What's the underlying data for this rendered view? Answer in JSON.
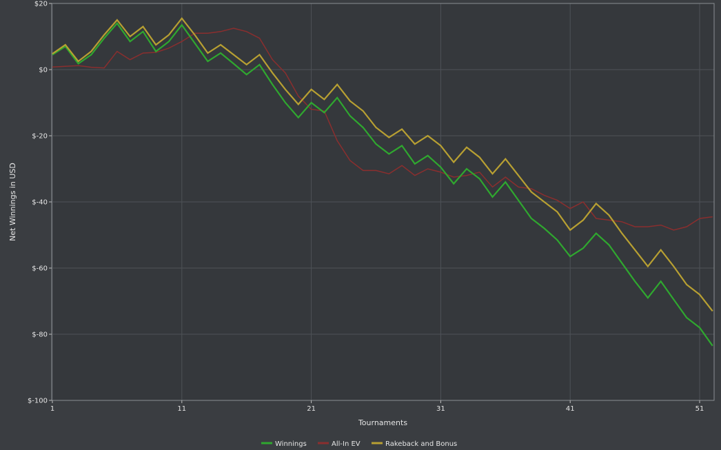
{
  "chart_data": {
    "type": "line",
    "xlabel": "Tournaments",
    "ylabel": "Net Winnings in USD",
    "xlim": [
      1,
      52
    ],
    "ylim": [
      -100,
      20
    ],
    "x_ticks": [
      1,
      11,
      21,
      31,
      41,
      51
    ],
    "y_ticks": [
      20,
      0,
      -20,
      -40,
      -60,
      -80,
      -100
    ],
    "y_tick_labels": [
      "$20",
      "$0",
      "$-20",
      "$-40",
      "$-60",
      "$-80",
      "$-100"
    ],
    "grid": true,
    "legend_position": "bottom",
    "colors": {
      "background": "#3a3d41",
      "plot_background": "#35383c",
      "grid": "#4e5257",
      "axis": "#bfbfbf"
    },
    "series": [
      {
        "name": "Winnings",
        "color": "#2fa82f",
        "values": [
          4.5,
          7,
          1.8,
          4.5,
          9.5,
          14,
          8.5,
          11.5,
          5.5,
          8.5,
          13.5,
          8,
          2.5,
          5,
          1.8,
          -1.5,
          1.5,
          -4.5,
          -10,
          -14.5,
          -10,
          -13,
          -8.5,
          -14,
          -17.5,
          -22.5,
          -25.5,
          -23,
          -28.5,
          -26,
          -29.5,
          -34.5,
          -30,
          -33,
          -38.5,
          -34,
          -39.5,
          -45,
          -48,
          -51.5,
          -56.5,
          -54,
          -49.5,
          -53,
          -58.5,
          -64,
          -69,
          -64,
          -69.5,
          -75,
          -78,
          -83.5
        ]
      },
      {
        "name": "All-In EV",
        "color": "#8b2e2e",
        "values": [
          0.8,
          1,
          1.2,
          0.7,
          0.5,
          5.5,
          3,
          5,
          5.2,
          6.5,
          8.5,
          11,
          11,
          11.5,
          12.5,
          11.5,
          9.5,
          3,
          -1,
          -8,
          -12,
          -12.5,
          -21.5,
          -27.5,
          -30.5,
          -30.5,
          -31.5,
          -29,
          -32,
          -30,
          -31,
          -32.5,
          -32,
          -31,
          -35.5,
          -32.5,
          -35.5,
          -36,
          -38,
          -39.5,
          -42,
          -40,
          -45,
          -45.5,
          -46,
          -47.5,
          -47.5,
          -47,
          -48.5,
          -47.5,
          -45,
          -44.5
        ]
      },
      {
        "name": "Rakeback and Bonus",
        "color": "#b8a032",
        "values": [
          4.8,
          7.5,
          2.5,
          5.5,
          10.5,
          15,
          10,
          13,
          7.5,
          10.5,
          15.5,
          10.5,
          5,
          7.5,
          4.5,
          1.5,
          4.5,
          -1,
          -6,
          -10.5,
          -6,
          -9,
          -4.5,
          -9.5,
          -12.5,
          -17.5,
          -20.5,
          -18,
          -22.5,
          -20,
          -23,
          -28,
          -23.5,
          -26.5,
          -31.5,
          -27,
          -32,
          -37,
          -40,
          -43,
          -48.5,
          -45.5,
          -40.5,
          -44,
          -49.5,
          -54.5,
          -59.5,
          -54.5,
          -59.5,
          -65,
          -68,
          -73
        ]
      }
    ]
  }
}
